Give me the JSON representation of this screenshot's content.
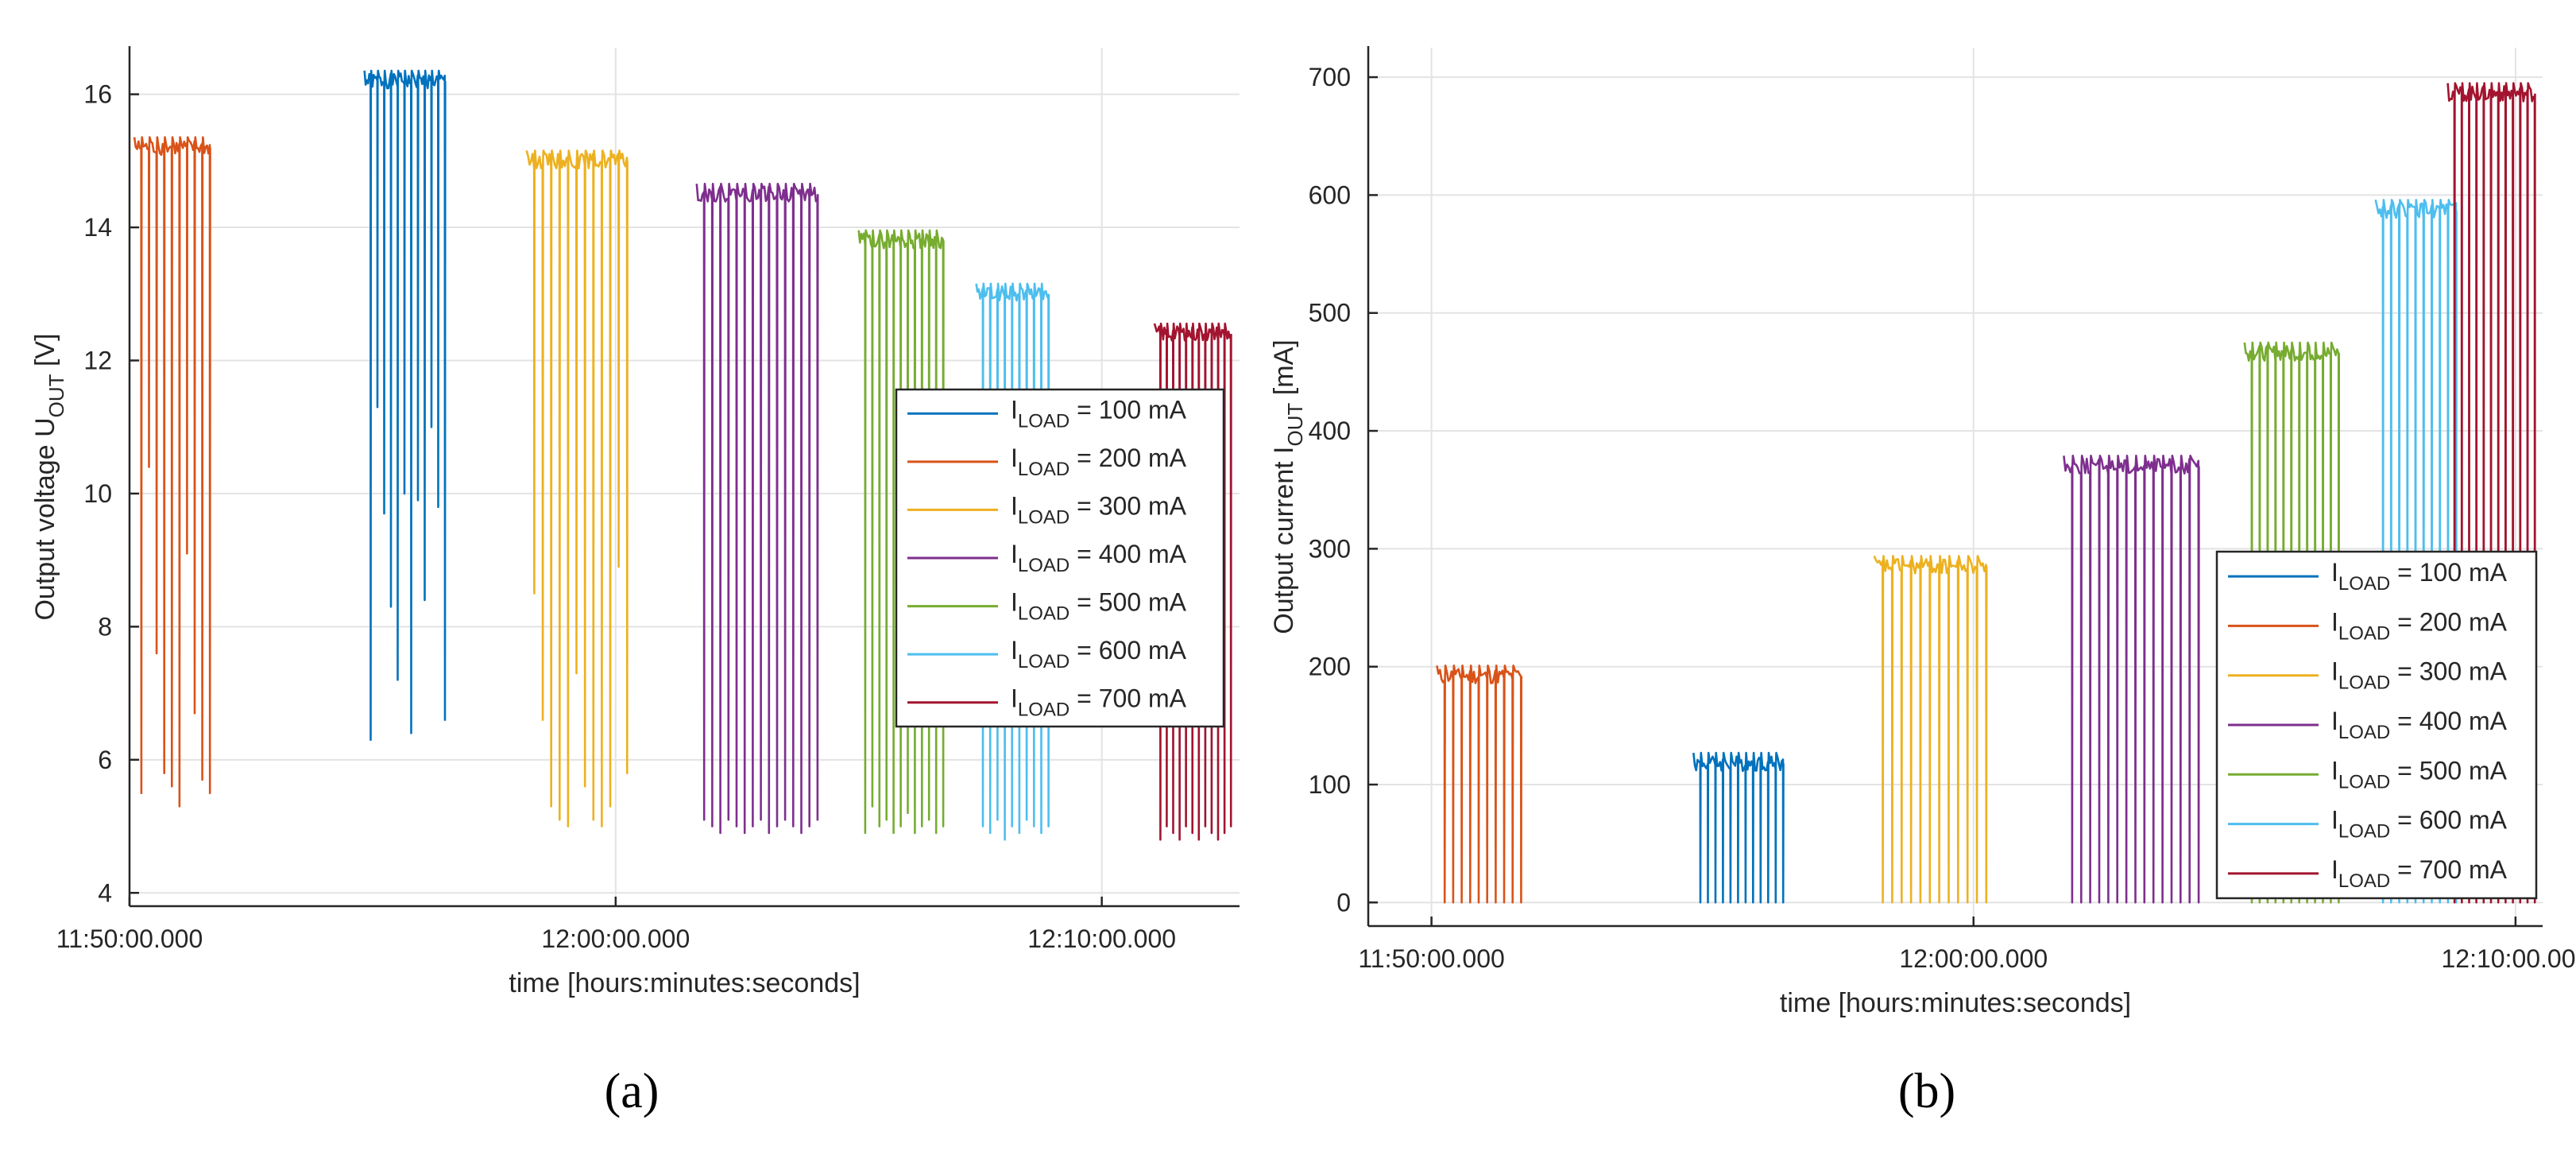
{
  "chart_data": [
    {
      "id": "a",
      "type": "line",
      "panel_label": "(a)",
      "xlabel": "time [hours:minutes:seconds]",
      "ylabel_main": "Output voltage U",
      "ylabel_sub": "OUT",
      "ylabel_unit": "[V]",
      "xlim": [
        0,
        1370
      ],
      "ylim": [
        3.8,
        16.7
      ],
      "yticks": [
        4,
        6,
        8,
        10,
        12,
        14,
        16
      ],
      "xticks": [
        {
          "value": 0,
          "label": "11:50:00.000"
        },
        {
          "value": 600,
          "label": "12:00:00.000"
        },
        {
          "value": 1200,
          "label": "12:10:00.000"
        }
      ],
      "grid": true,
      "legend_position": "right",
      "series": [
        {
          "name": "I",
          "sub": "LOAD",
          "suffix": " = 100 mA",
          "color": "#0072BD",
          "t_start": 290,
          "t_end": 390,
          "high": 16.2,
          "low": [
            6.3,
            11.3,
            9.7,
            8.3,
            7.2,
            10.0,
            6.4,
            9.9,
            8.4,
            11.0,
            9.8,
            6.6
          ]
        },
        {
          "name": "I",
          "sub": "LOAD",
          "suffix": " = 200 mA",
          "color": "#D95319",
          "t_start": 6,
          "t_end": 100,
          "high": 15.2,
          "low": [
            5.5,
            10.4,
            7.6,
            5.8,
            5.6,
            5.3,
            9.1,
            6.7,
            5.7,
            5.5
          ]
        },
        {
          "name": "I",
          "sub": "LOAD",
          "suffix": " = 300 mA",
          "color": "#EDB120",
          "t_start": 490,
          "t_end": 615,
          "high": 15.0,
          "low": [
            8.5,
            6.6,
            5.3,
            5.1,
            5.0,
            7.3,
            5.6,
            5.1,
            5.0,
            5.3,
            8.9,
            5.8
          ]
        },
        {
          "name": "I",
          "sub": "LOAD",
          "suffix": " = 400 mA",
          "color": "#7E2F8E",
          "t_start": 700,
          "t_end": 850,
          "high": 14.5,
          "low": [
            5.1,
            5.0,
            4.9,
            5.1,
            5.0,
            4.9,
            5.0,
            5.1,
            4.9,
            5.0,
            5.1,
            5.0,
            4.9,
            5.0,
            5.1
          ]
        },
        {
          "name": "I",
          "sub": "LOAD",
          "suffix": " = 500 mA",
          "color": "#77AC30",
          "t_start": 900,
          "t_end": 1005,
          "high": 13.8,
          "low": [
            4.9,
            5.3,
            5.0,
            5.1,
            4.9,
            5.0,
            5.2,
            4.9,
            5.0,
            5.1,
            4.9,
            5.0
          ]
        },
        {
          "name": "I",
          "sub": "LOAD",
          "suffix": " = 600 mA",
          "color": "#4DBEEE",
          "t_start": 1045,
          "t_end": 1135,
          "high": 13.0,
          "low": [
            5.0,
            4.9,
            5.1,
            4.8,
            5.0,
            4.9,
            5.1,
            5.0,
            4.9,
            5.0
          ]
        },
        {
          "name": "I",
          "sub": "LOAD",
          "suffix": " = 700 mA",
          "color": "#A2142F",
          "t_start": 1265,
          "t_end": 1360,
          "high": 12.4,
          "low": [
            4.8,
            5.0,
            4.9,
            4.8,
            5.0,
            4.9,
            4.8,
            5.0,
            4.9,
            4.8,
            4.9,
            5.0
          ]
        }
      ]
    },
    {
      "id": "b",
      "type": "line",
      "panel_label": "(b)",
      "xlabel": "time [hours:minutes:seconds]",
      "ylabel_main": "Output current I",
      "ylabel_sub": "OUT",
      "ylabel_unit": "[mA]",
      "xlim": [
        -70,
        1230
      ],
      "ylim": [
        -20,
        725
      ],
      "yticks": [
        0,
        100,
        200,
        300,
        400,
        500,
        600,
        700
      ],
      "xticks": [
        {
          "value": 0,
          "label": "11:50:00.000"
        },
        {
          "value": 600,
          "label": "12:00:00.000"
        },
        {
          "value": 1200,
          "label": "12:10:00.000"
        }
      ],
      "grid": true,
      "legend_position": "bottom-right",
      "series": [
        {
          "name": "I",
          "sub": "LOAD",
          "suffix": " = 100 mA",
          "color": "#0072BD",
          "t_start": 290,
          "t_end": 390,
          "high": 118,
          "low": 0,
          "pulses": 12
        },
        {
          "name": "I",
          "sub": "LOAD",
          "suffix": " = 200 mA",
          "color": "#D95319",
          "t_start": 6,
          "t_end": 100,
          "high": 192,
          "low": 0,
          "pulses": 10
        },
        {
          "name": "I",
          "sub": "LOAD",
          "suffix": " = 300 mA",
          "color": "#EDB120",
          "t_start": 490,
          "t_end": 615,
          "high": 285,
          "low": 0,
          "pulses": 12
        },
        {
          "name": "I",
          "sub": "LOAD",
          "suffix": " = 400 mA",
          "color": "#7E2F8E",
          "t_start": 700,
          "t_end": 850,
          "high": 370,
          "low": 0,
          "pulses": 15
        },
        {
          "name": "I",
          "sub": "LOAD",
          "suffix": " = 500 mA",
          "color": "#77AC30",
          "t_start": 900,
          "t_end": 1005,
          "high": 466,
          "low": 0,
          "pulses": 12
        },
        {
          "name": "I",
          "sub": "LOAD",
          "suffix": " = 600 mA",
          "color": "#4DBEEE",
          "t_start": 1045,
          "t_end": 1135,
          "high": 587,
          "low": 0,
          "pulses": 10
        },
        {
          "name": "I",
          "sub": "LOAD",
          "suffix": " = 700 mA",
          "color": "#A2142F",
          "t_start": 1125,
          "t_end": 1222,
          "high": 686,
          "low": 0,
          "pulses": 12
        }
      ]
    }
  ]
}
